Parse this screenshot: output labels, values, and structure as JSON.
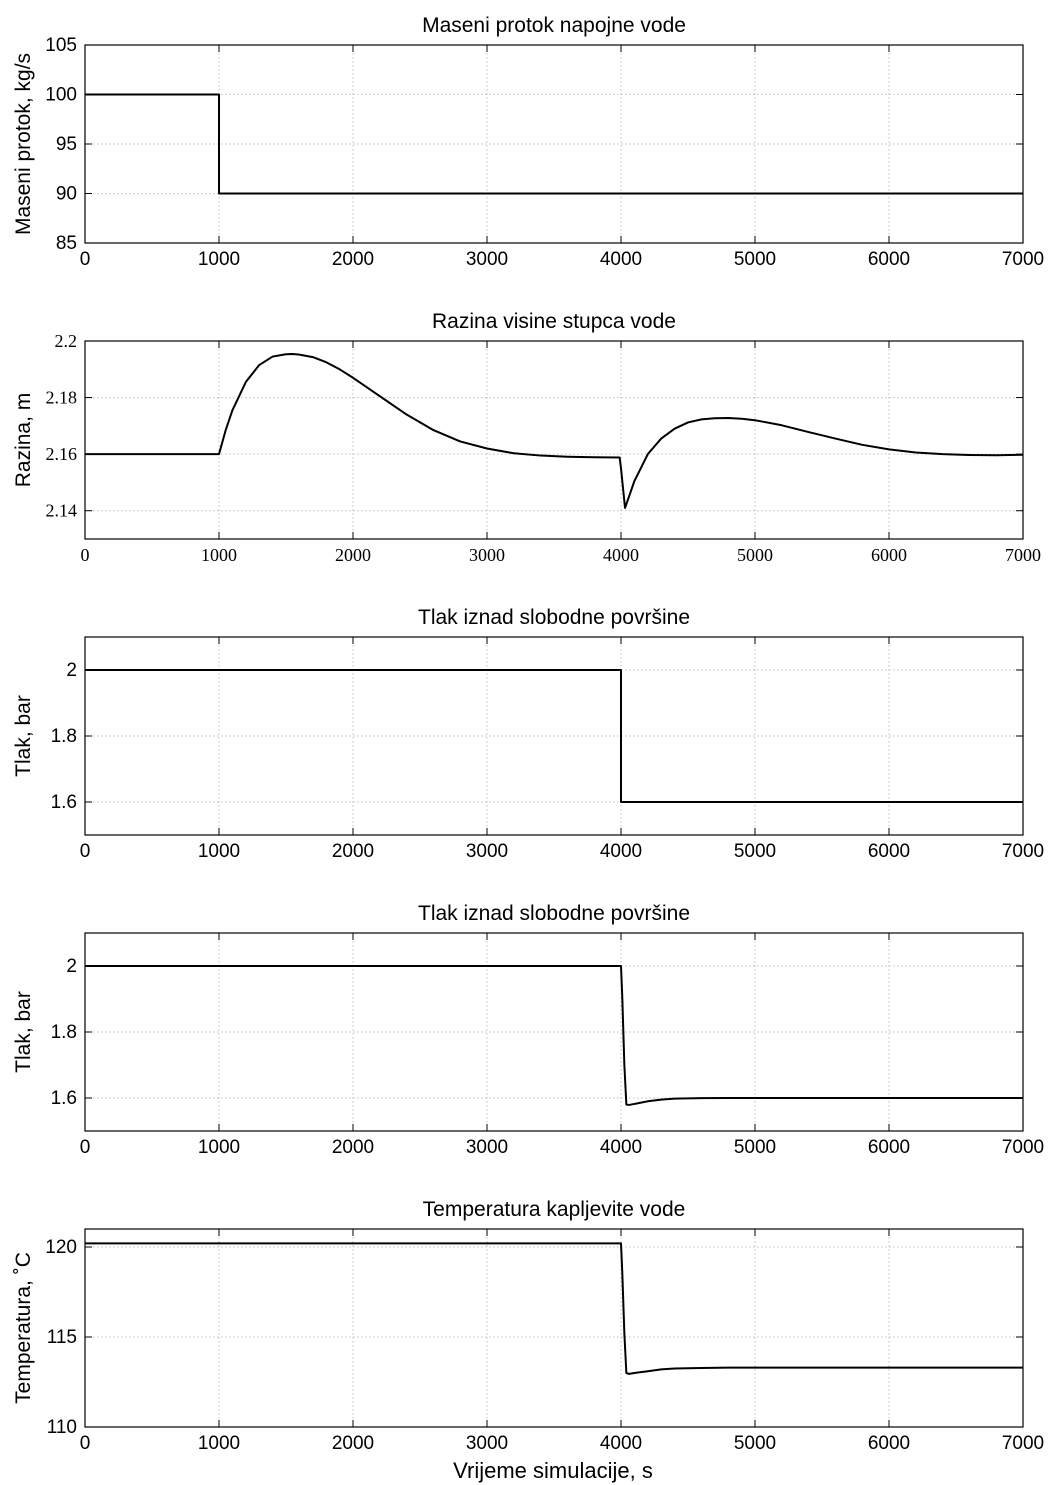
{
  "figure": {
    "xlabel": "Vrijeme simulacije, s"
  },
  "chart_data": [
    {
      "type": "line",
      "title": "Maseni protok napojne vode",
      "xlabel": "",
      "ylabel": "Maseni protok, kg/s",
      "xlim": [
        0,
        7000
      ],
      "ylim": [
        85,
        105
      ],
      "xticks": [
        0,
        1000,
        2000,
        3000,
        4000,
        5000,
        6000,
        7000
      ],
      "yticks": [
        85,
        90,
        95,
        100,
        105
      ],
      "grid": true,
      "tick_font": "sans",
      "series": [
        {
          "x": [
            0,
            1000,
            1000,
            7000
          ],
          "y": [
            100,
            100,
            90,
            90
          ]
        }
      ]
    },
    {
      "type": "line",
      "title": "Razina visine stupca vode",
      "xlabel": "",
      "ylabel": "Razina, m",
      "xlim": [
        0,
        7000
      ],
      "ylim": [
        2.13,
        2.2
      ],
      "xticks": [
        0,
        1000,
        2000,
        3000,
        4000,
        5000,
        6000,
        7000
      ],
      "yticks": [
        2.14,
        2.16,
        2.18,
        2.2
      ],
      "grid": true,
      "tick_font": "serif",
      "series": [
        {
          "x": [
            0,
            1000,
            1050,
            1100,
            1200,
            1300,
            1400,
            1500,
            1550,
            1600,
            1700,
            1800,
            1900,
            2000,
            2200,
            2400,
            2600,
            2800,
            3000,
            3200,
            3400,
            3600,
            3800,
            3990,
            4000,
            4030,
            4060,
            4100,
            4200,
            4300,
            4400,
            4500,
            4600,
            4700,
            4800,
            4900,
            5000,
            5200,
            5400,
            5600,
            5800,
            6000,
            6200,
            6400,
            6600,
            6800,
            7000
          ],
          "y": [
            2.16,
            2.16,
            2.1685,
            2.1755,
            2.1855,
            2.1915,
            2.1945,
            2.1953,
            2.1954,
            2.1952,
            2.1943,
            2.1925,
            2.19,
            2.187,
            2.1805,
            2.174,
            2.1685,
            2.1645,
            2.162,
            2.1603,
            2.1595,
            2.1591,
            2.1589,
            2.1588,
            2.155,
            2.141,
            2.145,
            2.1505,
            2.16,
            2.1655,
            2.169,
            2.1712,
            2.1723,
            2.1727,
            2.1728,
            2.1725,
            2.172,
            2.1702,
            2.1678,
            2.1655,
            2.1633,
            2.1617,
            2.1606,
            2.16,
            2.1597,
            2.1596,
            2.1598
          ]
        }
      ]
    },
    {
      "type": "line",
      "title": "Tlak iznad slobodne površine",
      "xlabel": "",
      "ylabel": "Tlak, bar",
      "xlim": [
        0,
        7000
      ],
      "ylim": [
        1.5,
        2.1
      ],
      "xticks": [
        0,
        1000,
        2000,
        3000,
        4000,
        5000,
        6000,
        7000
      ],
      "yticks": [
        1.6,
        1.8,
        2
      ],
      "grid": true,
      "tick_font": "sans",
      "series": [
        {
          "x": [
            0,
            4000,
            4000,
            7000
          ],
          "y": [
            2,
            2,
            1.6,
            1.6
          ]
        }
      ]
    },
    {
      "type": "line",
      "title": "Tlak iznad slobodne površine",
      "xlabel": "",
      "ylabel": "Tlak, bar",
      "xlim": [
        0,
        7000
      ],
      "ylim": [
        1.5,
        2.1
      ],
      "xticks": [
        0,
        1000,
        2000,
        3000,
        4000,
        5000,
        6000,
        7000
      ],
      "yticks": [
        1.6,
        1.8,
        2
      ],
      "grid": true,
      "tick_font": "sans",
      "series": [
        {
          "x": [
            0,
            4000,
            4010,
            4025,
            4040,
            4060,
            4100,
            4200,
            4300,
            4400,
            4600,
            4800,
            5000,
            7000
          ],
          "y": [
            2,
            2,
            1.9,
            1.7,
            1.58,
            1.579,
            1.582,
            1.59,
            1.595,
            1.598,
            1.5995,
            1.6,
            1.6,
            1.6
          ]
        }
      ]
    },
    {
      "type": "line",
      "title": "Temperatura kapljevite vode",
      "xlabel": "Vrijeme simulacije, s",
      "ylabel": "Temperatura, ˚C",
      "xlim": [
        0,
        7000
      ],
      "ylim": [
        110,
        121
      ],
      "xticks": [
        0,
        1000,
        2000,
        3000,
        4000,
        5000,
        6000,
        7000
      ],
      "yticks": [
        110,
        115,
        120
      ],
      "grid": true,
      "tick_font": "sans",
      "series": [
        {
          "x": [
            0,
            4000,
            4010,
            4025,
            4040,
            4060,
            4100,
            4200,
            4300,
            4400,
            4600,
            4800,
            5000,
            7000
          ],
          "y": [
            120.2,
            120.2,
            118.5,
            115.2,
            113.0,
            112.95,
            113.0,
            113.1,
            113.2,
            113.25,
            113.28,
            113.3,
            113.3,
            113.3
          ]
        }
      ]
    }
  ]
}
